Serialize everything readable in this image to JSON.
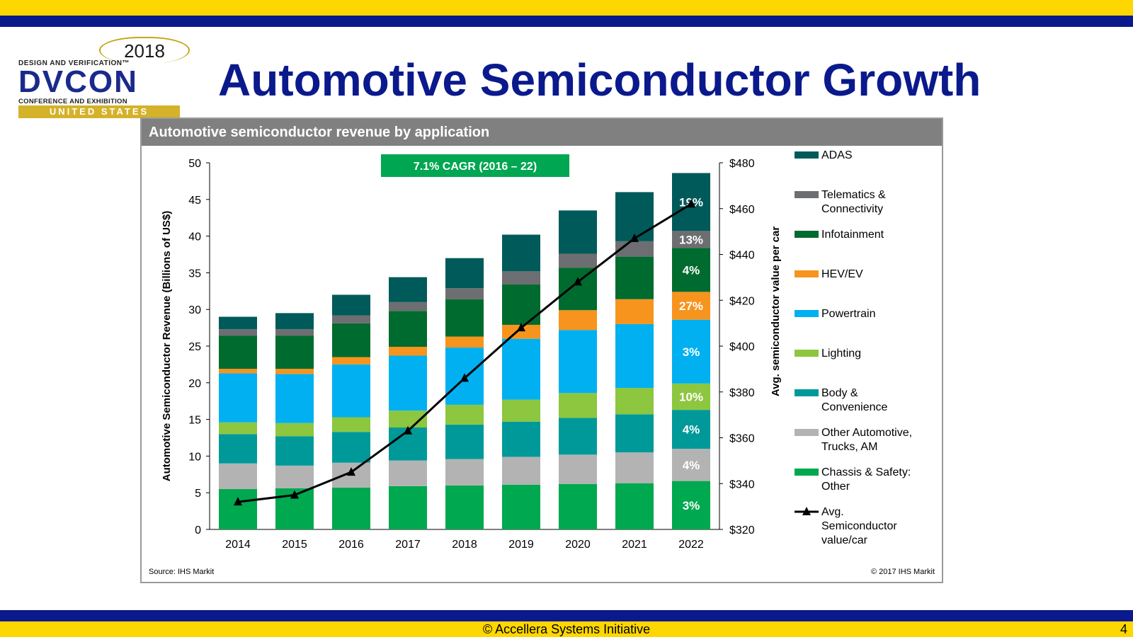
{
  "slide": {
    "title": "Automotive Semiconductor Growth",
    "footer": "© Accellera Systems Initiative",
    "page_number": "4",
    "colors": {
      "navy": "#0a1a8c",
      "yellow": "#ffd700"
    }
  },
  "logo": {
    "year": "2018",
    "tagline_top": "DESIGN AND VERIFICATION™",
    "name": "DVCON",
    "tagline_bottom": "CONFERENCE AND EXHIBITION",
    "region": "UNITED STATES"
  },
  "chart_data": {
    "type": "bar",
    "stacked": true,
    "title": "Automotive semiconductor revenue by application",
    "ylabel": "Automotive Semiconductor Revenue (Billions of US$)",
    "y2label": "Avg. semiconductor value per car",
    "ylim": [
      0,
      50
    ],
    "yticks": [
      "0",
      "5",
      "10",
      "15",
      "20",
      "25",
      "30",
      "35",
      "40",
      "45",
      "50"
    ],
    "y2lim": [
      320,
      480
    ],
    "y2ticks": [
      "$320",
      "$340",
      "$360",
      "$380",
      "$400",
      "$420",
      "$440",
      "$460",
      "$480"
    ],
    "categories": [
      "2014",
      "2015",
      "2016",
      "2017",
      "2018",
      "2019",
      "2020",
      "2021",
      "2022"
    ],
    "series": [
      {
        "name": "Chassis & Safety: Other",
        "color": "#00a84f",
        "values": [
          5.5,
          5.6,
          5.7,
          5.9,
          6.0,
          6.1,
          6.2,
          6.3,
          6.6
        ]
      },
      {
        "name": "Other Automotive, Trucks, AM",
        "color": "#b3b3b3",
        "values": [
          3.5,
          3.1,
          3.4,
          3.5,
          3.6,
          3.8,
          4.0,
          4.2,
          4.4
        ]
      },
      {
        "name": "Body & Convenience",
        "color": "#009999",
        "values": [
          4.0,
          4.0,
          4.2,
          4.5,
          4.7,
          4.8,
          5.0,
          5.2,
          5.3
        ]
      },
      {
        "name": "Lighting",
        "color": "#8dc63f",
        "values": [
          1.6,
          1.8,
          2.0,
          2.3,
          2.7,
          3.0,
          3.4,
          3.6,
          3.6
        ]
      },
      {
        "name": "Powertrain",
        "color": "#00b0f0",
        "values": [
          6.7,
          6.7,
          7.2,
          7.5,
          7.8,
          8.3,
          8.6,
          8.7,
          8.7
        ]
      },
      {
        "name": "HEV/EV",
        "color": "#f7941d",
        "values": [
          0.6,
          0.7,
          1.0,
          1.2,
          1.5,
          1.9,
          2.7,
          3.4,
          3.8
        ]
      },
      {
        "name": "Infotainment",
        "color": "#006b2e",
        "values": [
          4.5,
          4.5,
          4.6,
          4.9,
          5.1,
          5.5,
          5.8,
          5.8,
          6.0
        ]
      },
      {
        "name": "Telematics & Connectivity",
        "color": "#6d6e71",
        "values": [
          0.9,
          0.9,
          1.1,
          1.2,
          1.5,
          1.8,
          1.9,
          2.1,
          2.3
        ]
      },
      {
        "name": "ADAS",
        "color": "#005a5a",
        "values": [
          1.7,
          2.2,
          2.8,
          3.4,
          4.1,
          5.0,
          5.9,
          6.7,
          7.9
        ]
      }
    ],
    "line_series": {
      "name": "Avg. Semiconductor value/car",
      "axis": "y2",
      "values": [
        332,
        335,
        345,
        363,
        386,
        408,
        428,
        447,
        462
      ]
    },
    "bar_labels_2022": [
      "3%",
      "4%",
      "4%",
      "10%",
      "3%",
      "27%",
      "4%",
      "13%",
      "19%"
    ],
    "annotation": "7.1% CAGR (2016 – 22)",
    "legend_position": "right",
    "legend_labels": [
      "ADAS",
      "Telematics & Connectivity",
      "Infotainment",
      "HEV/EV",
      "Powertrain",
      "Lighting",
      "Body & Convenience",
      "Other Automotive, Trucks, AM",
      "Chassis & Safety: Other",
      "Avg. Semiconductor value/car"
    ],
    "source": "Source: IHS Markit",
    "copyright": "© 2017 IHS Markit"
  }
}
